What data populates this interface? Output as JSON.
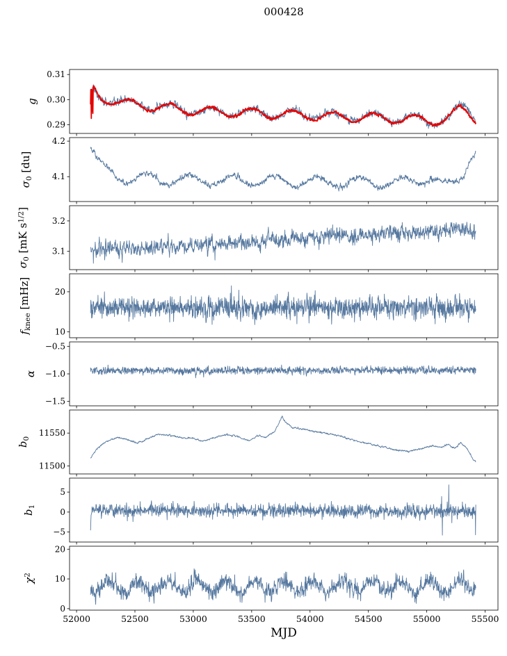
{
  "title": "000428",
  "xlabel": "MJD",
  "colors": {
    "data": "#56789f",
    "model": "#e60000",
    "axis": "#000000",
    "background": "#ffffff"
  },
  "x_axis": {
    "lim": [
      51940,
      55610
    ],
    "ticks": [
      52000,
      52500,
      53000,
      53500,
      54000,
      54500,
      55000,
      55500
    ],
    "tick_labels": [
      "52000",
      "52500",
      "53000",
      "53500",
      "54000",
      "54500",
      "55000",
      "55500"
    ],
    "data_start": 52120,
    "data_end": 55420,
    "n_points": 1500
  },
  "chart_data": [
    {
      "type": "line",
      "name": "g",
      "ylabel": [
        {
          "t": "g",
          "s": "i"
        }
      ],
      "ylim": [
        0.2865,
        0.312
      ],
      "yticks": {
        "values": [
          0.29,
          0.3,
          0.31
        ],
        "labels": [
          "0.29",
          "0.30",
          "0.31"
        ]
      },
      "series": [
        {
          "name": "gain-data",
          "color": "data",
          "width": 0.9,
          "seed": 11,
          "trend": [
            [
              52120,
              0.2995
            ],
            [
              52140,
              0.3038
            ],
            [
              52200,
              0.3008
            ],
            [
              52400,
              0.2986
            ],
            [
              53000,
              0.2956
            ],
            [
              53600,
              0.2946
            ],
            [
              54200,
              0.2934
            ],
            [
              54800,
              0.2924
            ],
            [
              55100,
              0.2917
            ],
            [
              55200,
              0.2932
            ],
            [
              55290,
              0.2972
            ],
            [
              55350,
              0.2962
            ],
            [
              55420,
              0.2928
            ]
          ],
          "seasonal": {
            "amp": 0.0016,
            "period": 350,
            "peak": 52450
          },
          "noise": {
            "ar": 0.0005,
            "rho": 0.7,
            "white": 0.0004
          }
        },
        {
          "name": "gain-model",
          "color": "model",
          "width": 1.8,
          "seed": 12,
          "trend": [
            [
              52120,
              0.296
            ],
            [
              52123,
              0.304
            ],
            [
              52126,
              0.288
            ],
            [
              52129,
              0.3035
            ],
            [
              52132,
              0.289
            ],
            [
              52135,
              0.3035
            ],
            [
              52139,
              0.2905
            ],
            [
              52143,
              0.3038
            ],
            [
              52150,
              0.304
            ],
            [
              52200,
              0.301
            ],
            [
              52400,
              0.2985
            ],
            [
              53000,
              0.2955
            ],
            [
              53600,
              0.2945
            ],
            [
              54200,
              0.2933
            ],
            [
              54800,
              0.2923
            ],
            [
              55100,
              0.2916
            ],
            [
              55200,
              0.2928
            ],
            [
              55280,
              0.2962
            ],
            [
              55350,
              0.2952
            ],
            [
              55420,
              0.2922
            ]
          ],
          "seasonal": {
            "amp": 0.0018,
            "period": 350,
            "peak": 52450
          },
          "noise": {
            "ar": 0.0002,
            "rho": 0.5,
            "white": 0.0001
          }
        }
      ]
    },
    {
      "type": "line",
      "name": "sigma0-du",
      "ylabel": [
        {
          "t": "σ",
          "s": "i"
        },
        {
          "t": "0",
          "s": "sub"
        },
        {
          "t": " [du]",
          "s": "n"
        }
      ],
      "ylim": [
        4.03,
        4.21
      ],
      "yticks": {
        "values": [
          4.1,
          4.2
        ],
        "labels": [
          "4.1",
          "4.2"
        ]
      },
      "series": [
        {
          "name": "sigma0-du",
          "color": "data",
          "width": 0.9,
          "seed": 21,
          "trend": [
            [
              52120,
              4.19
            ],
            [
              52170,
              4.148
            ],
            [
              52240,
              4.118
            ],
            [
              52330,
              4.103
            ],
            [
              52450,
              4.096
            ],
            [
              53000,
              4.09
            ],
            [
              54000,
              4.086
            ],
            [
              54800,
              4.082
            ],
            [
              55040,
              4.098
            ],
            [
              55120,
              4.076
            ],
            [
              55200,
              4.072
            ],
            [
              55300,
              4.105
            ],
            [
              55380,
              4.162
            ],
            [
              55420,
              4.168
            ]
          ],
          "seasonal": {
            "amp": 0.015,
            "period": 365,
            "peak": 52600
          },
          "noise": {
            "ar": 0.003,
            "rho": 0.6,
            "white": 0.0015
          }
        }
      ]
    },
    {
      "type": "line",
      "name": "sigma0-mks",
      "ylabel": [
        {
          "t": "σ",
          "s": "i"
        },
        {
          "t": "0",
          "s": "sub"
        },
        {
          "t": " [mK s",
          "s": "n"
        },
        {
          "t": "1/2",
          "s": "sup"
        },
        {
          "t": "]",
          "s": "n"
        }
      ],
      "ylim": [
        3.04,
        3.25
      ],
      "yticks": {
        "values": [
          3.1,
          3.2
        ],
        "labels": [
          "3.1",
          "3.2"
        ]
      },
      "series": [
        {
          "name": "sigma0-mks",
          "color": "data",
          "width": 0.9,
          "seed": 31,
          "trend": [
            [
              52120,
              3.105
            ],
            [
              52400,
              3.11
            ],
            [
              53000,
              3.12
            ],
            [
              53500,
              3.13
            ],
            [
              54000,
              3.145
            ],
            [
              54500,
              3.155
            ],
            [
              55000,
              3.165
            ],
            [
              55420,
              3.175
            ]
          ],
          "noise": {
            "ar": 0.01,
            "rho": 0.5,
            "white": 0.006
          }
        }
      ]
    },
    {
      "type": "line",
      "name": "f-knee",
      "ylabel": [
        {
          "t": "f",
          "s": "i"
        },
        {
          "t": "knee",
          "s": "sub"
        },
        {
          "t": " [mHz]",
          "s": "n"
        }
      ],
      "ylim": [
        8.5,
        24.5
      ],
      "yticks": {
        "values": [
          10,
          20
        ],
        "labels": [
          "10",
          "20"
        ]
      },
      "series": [
        {
          "name": "f-knee",
          "color": "data",
          "width": 0.9,
          "seed": 41,
          "trend": [
            [
              52120,
              16.0
            ],
            [
              55420,
              16.0
            ]
          ],
          "noise": {
            "ar": 0.8,
            "rho": 0.3,
            "white": 1.0
          },
          "spikes": {
            "prob": 0.01,
            "amp": 2.5,
            "from": 52120
          }
        }
      ]
    },
    {
      "type": "line",
      "name": "alpha",
      "ylabel": [
        {
          "t": "α",
          "s": "i"
        }
      ],
      "ylim": [
        -1.58,
        -0.42
      ],
      "yticks": {
        "values": [
          -0.5,
          -1.0,
          -1.5
        ],
        "labels": [
          "−0.5",
          "−1.0",
          "−1.5"
        ]
      },
      "series": [
        {
          "name": "alpha",
          "color": "data",
          "width": 0.9,
          "seed": 51,
          "trend": [
            [
              52120,
              -0.95
            ],
            [
              55420,
              -0.93
            ]
          ],
          "noise": {
            "ar": 0.02,
            "rho": 0.4,
            "white": 0.025
          }
        }
      ]
    },
    {
      "type": "line",
      "name": "b0",
      "ylabel": [
        {
          "t": "b",
          "s": "i"
        },
        {
          "t": "0",
          "s": "sub"
        }
      ],
      "ylim": [
        11488,
        11585
      ],
      "yticks": {
        "values": [
          11500,
          11550
        ],
        "labels": [
          "11500",
          "11550"
        ]
      },
      "series": [
        {
          "name": "b0",
          "color": "data",
          "width": 0.9,
          "seed": 61,
          "trend": [
            [
              52120,
              11512
            ],
            [
              52170,
              11525
            ],
            [
              52250,
              11537
            ],
            [
              52350,
              11543
            ],
            [
              52430,
              11540
            ],
            [
              52520,
              11535
            ],
            [
              52620,
              11542
            ],
            [
              52700,
              11548
            ],
            [
              52780,
              11547
            ],
            [
              52900,
              11543
            ],
            [
              53000,
              11542
            ],
            [
              53080,
              11538
            ],
            [
              53180,
              11543
            ],
            [
              53280,
              11548
            ],
            [
              53380,
              11545
            ],
            [
              53480,
              11538
            ],
            [
              53560,
              11547
            ],
            [
              53620,
              11543
            ],
            [
              53700,
              11553
            ],
            [
              53760,
              11575
            ],
            [
              53790,
              11567
            ],
            [
              53850,
              11558
            ],
            [
              53950,
              11556
            ],
            [
              54050,
              11552
            ],
            [
              54150,
              11549
            ],
            [
              54250,
              11546
            ],
            [
              54350,
              11540
            ],
            [
              54450,
              11536
            ],
            [
              54550,
              11532
            ],
            [
              54650,
              11528
            ],
            [
              54750,
              11524
            ],
            [
              54850,
              11522
            ],
            [
              54950,
              11526
            ],
            [
              55050,
              11531
            ],
            [
              55120,
              11528
            ],
            [
              55180,
              11533
            ],
            [
              55240,
              11527
            ],
            [
              55290,
              11535
            ],
            [
              55340,
              11528
            ],
            [
              55390,
              11512
            ],
            [
              55420,
              11506
            ]
          ],
          "noise": {
            "ar": 0.5,
            "rho": 0.6,
            "white": 0.25
          }
        }
      ]
    },
    {
      "type": "line",
      "name": "b1",
      "ylabel": [
        {
          "t": "b",
          "s": "i"
        },
        {
          "t": "1",
          "s": "sub"
        }
      ],
      "ylim": [
        -7.5,
        8.5
      ],
      "yticks": {
        "values": [
          -5,
          0,
          5
        ],
        "labels": [
          "−5",
          "0",
          "5"
        ]
      },
      "series": [
        {
          "name": "b1",
          "color": "data",
          "width": 0.9,
          "seed": 71,
          "trend": [
            [
              52118,
              -6.5
            ],
            [
              52125,
              0.5
            ],
            [
              55420,
              0.2
            ]
          ],
          "noise": {
            "ar": 0.5,
            "rho": 0.3,
            "white": 0.6
          },
          "spikes": {
            "prob": 0.02,
            "amp": 4,
            "from": 54950
          }
        }
      ]
    },
    {
      "type": "line",
      "name": "chi2",
      "ylabel": [
        {
          "t": "χ",
          "s": "i"
        },
        {
          "t": "2",
          "s": "sup"
        }
      ],
      "ylim": [
        -0.5,
        21
      ],
      "yticks": {
        "values": [
          0,
          10,
          20
        ],
        "labels": [
          "0",
          "10",
          "20"
        ]
      },
      "series": [
        {
          "name": "chi2",
          "color": "data",
          "width": 0.9,
          "seed": 81,
          "trend": [
            [
              52120,
              7.5
            ],
            [
              55420,
              7.5
            ]
          ],
          "seasonal": {
            "amp": 2.2,
            "period": 250,
            "peak": 52280
          },
          "noise": {
            "ar": 0.9,
            "rho": 0.5,
            "white": 0.9
          }
        }
      ]
    }
  ]
}
